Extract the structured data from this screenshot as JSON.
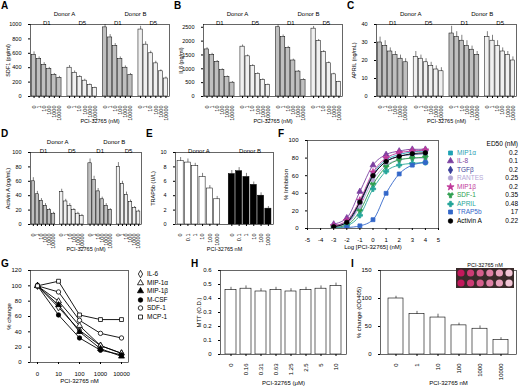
{
  "chart_data": [
    {
      "type": "bar",
      "title": "A",
      "x_label": "PCI-32765 (nM)",
      "y_label": "SDF1 (pg/ml)",
      "categories": [
        0,
        1,
        10,
        100,
        1000,
        10000
      ],
      "ylim": [
        0,
        1000
      ],
      "yticks": [
        0,
        200,
        400,
        600,
        800,
        1000
      ],
      "series": [
        {
          "name": "D1",
          "group": "Donor A",
          "color": "#bfbfbf",
          "values": [
            580,
            520,
            440,
            380,
            300,
            260
          ],
          "errors": [
            40,
            30,
            30,
            25,
            20,
            20
          ]
        },
        {
          "name": "D5",
          "group": "Donor A",
          "color": "#f0f0f0",
          "values": [
            400,
            330,
            270,
            220,
            160,
            120
          ],
          "errors": [
            30,
            25,
            20,
            20,
            15,
            10
          ]
        },
        {
          "name": "D1",
          "group": "Donor B",
          "color": "#bfbfbf",
          "values": [
            960,
            820,
            700,
            520,
            400,
            300
          ],
          "errors": [
            50,
            40,
            35,
            30,
            25,
            20
          ]
        },
        {
          "name": "D5",
          "group": "Donor B",
          "color": "#f0f0f0",
          "values": [
            930,
            720,
            600,
            460,
            350,
            250
          ],
          "errors": [
            45,
            40,
            30,
            30,
            20,
            20
          ]
        }
      ]
    },
    {
      "type": "bar",
      "title": "B",
      "x_label": "PCI-32765 (nM)",
      "y_label": "IL8 (pg/ml)",
      "categories": [
        0,
        1,
        10,
        100,
        1000,
        10000
      ],
      "ylim": [
        0,
        2600
      ],
      "yticks": [
        0,
        500,
        1000,
        1500,
        2000,
        2500
      ],
      "series": [
        {
          "name": "D1",
          "group": "Donor A",
          "color": "#bfbfbf",
          "values": [
            1700,
            1500,
            1250,
            950,
            700,
            500
          ],
          "errors": [
            60,
            60,
            50,
            50,
            40,
            40
          ]
        },
        {
          "name": "D5",
          "group": "Donor A",
          "color": "#f0f0f0",
          "values": [
            1800,
            1450,
            1100,
            820,
            600,
            420
          ],
          "errors": [
            60,
            50,
            50,
            40,
            40,
            30
          ]
        },
        {
          "name": "D1",
          "group": "Donor B",
          "color": "#bfbfbf",
          "values": [
            2500,
            2150,
            1750,
            1300,
            900,
            600
          ],
          "errors": [
            80,
            70,
            60,
            50,
            40,
            40
          ]
        },
        {
          "name": "D5",
          "group": "Donor B",
          "color": "#f0f0f0",
          "values": [
            2450,
            2000,
            1600,
            1200,
            800,
            520
          ],
          "errors": [
            80,
            60,
            60,
            50,
            40,
            30
          ]
        }
      ]
    },
    {
      "type": "bar",
      "title": "C",
      "x_label": "PCI-32765 (nM)",
      "y_label": "APRIL (ng/mL)",
      "categories": [
        0,
        1,
        10,
        100,
        1000,
        10000
      ],
      "ylim": [
        0,
        40
      ],
      "yticks": [
        0,
        10,
        20,
        30,
        40
      ],
      "series": [
        {
          "name": "D1",
          "group": "Donor A",
          "color": "#bfbfbf",
          "values": [
            30,
            28,
            25,
            23,
            21,
            19
          ],
          "errors": [
            3,
            3,
            2,
            2,
            2,
            2
          ]
        },
        {
          "name": "D5",
          "group": "Donor A",
          "color": "#f0f0f0",
          "values": [
            22,
            21,
            19,
            17,
            15,
            14
          ],
          "errors": [
            3,
            2,
            2,
            2,
            2,
            2
          ]
        },
        {
          "name": "D1",
          "group": "Donor B",
          "color": "#bfbfbf",
          "values": [
            35,
            33,
            31,
            28,
            26,
            23
          ],
          "errors": [
            4,
            3,
            3,
            3,
            2,
            2
          ]
        },
        {
          "name": "D5",
          "group": "Donor B",
          "color": "#f0f0f0",
          "values": [
            33,
            31,
            28,
            25,
            23,
            20
          ],
          "errors": [
            3,
            3,
            3,
            2,
            2,
            2
          ]
        }
      ]
    },
    {
      "type": "bar",
      "title": "D",
      "x_label": "PCI-32765 (nM)",
      "y_label": "Activin A (pg/mL)",
      "categories": [
        0,
        1,
        10,
        100,
        1000,
        10000
      ],
      "ylim": [
        0,
        100
      ],
      "yticks": [
        0,
        20,
        40,
        60,
        80,
        100
      ],
      "series": [
        {
          "name": "D1",
          "group": "Donor A",
          "color": "#bfbfbf",
          "values": [
            60,
            42,
            33,
            26,
            20,
            15
          ],
          "errors": [
            5,
            4,
            3,
            3,
            2,
            2
          ]
        },
        {
          "name": "D5",
          "group": "Donor A",
          "color": "#f0f0f0",
          "values": [
            45,
            32,
            26,
            20,
            15,
            12
          ],
          "errors": [
            4,
            3,
            3,
            2,
            2,
            2
          ]
        },
        {
          "name": "D1",
          "group": "Donor B",
          "color": "#bfbfbf",
          "values": [
            85,
            62,
            46,
            35,
            26,
            20
          ],
          "errors": [
            6,
            5,
            4,
            3,
            3,
            2
          ]
        },
        {
          "name": "D5",
          "group": "Donor B",
          "color": "#f0f0f0",
          "values": [
            80,
            56,
            41,
            31,
            23,
            18
          ],
          "errors": [
            6,
            4,
            4,
            3,
            2,
            2
          ]
        }
      ]
    },
    {
      "type": "bar",
      "title": "E",
      "x_label": "PCI-32765 nM",
      "y_label": "TRAP5b (U/L)",
      "categories": [
        0,
        0.1,
        1,
        10,
        100,
        1000
      ],
      "ylim": [
        0,
        10
      ],
      "yticks": [
        0,
        2,
        4,
        6,
        8,
        10
      ],
      "series": [
        {
          "name": "Donor A",
          "color": "#ffffff",
          "values": [
            8.8,
            8.6,
            8.1,
            6.6,
            5.0,
            3.5
          ],
          "errors": [
            0.5,
            0.5,
            0.4,
            0.5,
            0.4,
            0.4
          ]
        },
        {
          "name": "Donor B",
          "color": "#000000",
          "values": [
            7.0,
            7.4,
            6.6,
            5.5,
            4.0,
            2.2
          ],
          "errors": [
            0.5,
            0.5,
            0.5,
            0.4,
            0.4,
            0.3
          ]
        }
      ]
    },
    {
      "type": "line",
      "title": "F",
      "x_label": "Log [PCI-32765] (nM)",
      "y_label": "% Inhibition",
      "x": [
        -3,
        -2,
        -1,
        0,
        1,
        2,
        3,
        4
      ],
      "xlim": [
        -5,
        5
      ],
      "xticks": [
        -5,
        -4,
        -3,
        -2,
        -1,
        0,
        1,
        2,
        3,
        4,
        5
      ],
      "ylim": [
        0,
        100
      ],
      "yticks": [
        0,
        20,
        40,
        60,
        80,
        100
      ],
      "legend": "right",
      "legend_title": "ED50 (nM)",
      "series": [
        {
          "name": "MIP1α",
          "color": "#1fa2b4",
          "marker": "square",
          "ed50": 0.2,
          "values": [
            3,
            8,
            30,
            62,
            78,
            84,
            87,
            88
          ]
        },
        {
          "name": "IL-8",
          "color": "#7b3fa0",
          "marker": "triangle",
          "ed50": 0.1,
          "values": [
            5,
            12,
            42,
            72,
            84,
            88,
            90,
            90
          ]
        },
        {
          "name": "TGFβ",
          "color": "#3a3f9a",
          "marker": "diamond",
          "ed50": 0.2,
          "values": [
            2,
            6,
            28,
            60,
            76,
            82,
            84,
            85
          ]
        },
        {
          "name": "RANTES",
          "color": "#b4a7d6",
          "marker": "circle",
          "ed50": 0.25,
          "values": [
            1,
            5,
            25,
            55,
            72,
            78,
            80,
            80
          ]
        },
        {
          "name": "MIP1β",
          "color": "#c0399b",
          "marker": "star",
          "ed50": 0.2,
          "values": [
            3,
            9,
            32,
            64,
            80,
            86,
            88,
            89
          ]
        },
        {
          "name": "SDF-1",
          "color": "#2e9e4f",
          "marker": "wye",
          "ed50": 0.35,
          "values": [
            1,
            4,
            20,
            50,
            70,
            78,
            80,
            81
          ]
        },
        {
          "name": "APRIL",
          "color": "#26a69a",
          "marker": "cross",
          "ed50": 0.48,
          "values": [
            0,
            3,
            15,
            45,
            65,
            72,
            74,
            75
          ]
        },
        {
          "name": "TRAP5b",
          "color": "#3367c9",
          "marker": "square",
          "ed50": 17,
          "values": [
            0,
            1,
            3,
            10,
            40,
            62,
            72,
            75
          ]
        },
        {
          "name": "Activin A",
          "color": "#000000",
          "marker": "circle",
          "ed50": 0.22,
          "values": [
            2,
            7,
            30,
            60,
            76,
            82,
            85,
            86
          ]
        }
      ]
    },
    {
      "type": "line",
      "title": "G",
      "x_label": "PCI-32765 nM",
      "y_label": "% change",
      "categories": [
        0,
        10,
        100,
        1000,
        10000
      ],
      "ylim": [
        0,
        120
      ],
      "yticks": [
        0,
        20,
        40,
        60,
        80,
        100,
        120
      ],
      "legend": "right",
      "series": [
        {
          "name": "IL-6",
          "color": "#000000",
          "marker": "diamond_open",
          "values": [
            100,
            72,
            42,
            22,
            12
          ]
        },
        {
          "name": "MIP-1α",
          "color": "#000000",
          "marker": "triangle_open",
          "values": [
            100,
            80,
            48,
            22,
            12
          ]
        },
        {
          "name": "MIP-1β",
          "color": "#000000",
          "marker": "triangle",
          "values": [
            100,
            75,
            40,
            18,
            8
          ]
        },
        {
          "name": "M-CSF",
          "color": "#000000",
          "marker": "circle",
          "values": [
            100,
            62,
            32,
            16,
            10
          ]
        },
        {
          "name": "SDF-1",
          "color": "#000000",
          "marker": "circle_open",
          "values": [
            100,
            92,
            55,
            38,
            32
          ]
        },
        {
          "name": "MCP-1",
          "color": "#000000",
          "marker": "square_open",
          "values": [
            100,
            106,
            62,
            56,
            56
          ]
        }
      ]
    },
    {
      "type": "bar",
      "title": "H",
      "x_label": "PCI-32765 (μM)",
      "y_label": "MTT (O.D.)",
      "categories": [
        0,
        0.16,
        0.31,
        0.63,
        1.25,
        2.5,
        5,
        10
      ],
      "color": "#ffffff",
      "values": [
        0.46,
        0.47,
        0.45,
        0.46,
        0.45,
        0.46,
        0.47,
        0.49
      ],
      "errors": [
        0.02,
        0.02,
        0.02,
        0.02,
        0.02,
        0.02,
        0.02,
        0.02
      ],
      "ylim": [
        0,
        0.6
      ],
      "yticks": [
        0,
        0.1,
        0.2,
        0.3,
        0.4,
        0.5,
        0.6
      ]
    },
    {
      "type": "bar",
      "title": "I",
      "x_label": "PCI-32765 nM",
      "y_label": "% change (OD405)",
      "categories": [
        0,
        1,
        10,
        100,
        1000,
        10000
      ],
      "color": "#ffffff",
      "values": [
        100,
        72,
        66,
        52,
        46,
        26
      ],
      "errors": [
        4,
        5,
        6,
        4,
        5,
        4
      ],
      "ylim": [
        0,
        150
      ],
      "yticks": [
        0,
        50,
        100,
        150
      ],
      "inset": {
        "title": "PCI-32765 nM"
      }
    }
  ]
}
